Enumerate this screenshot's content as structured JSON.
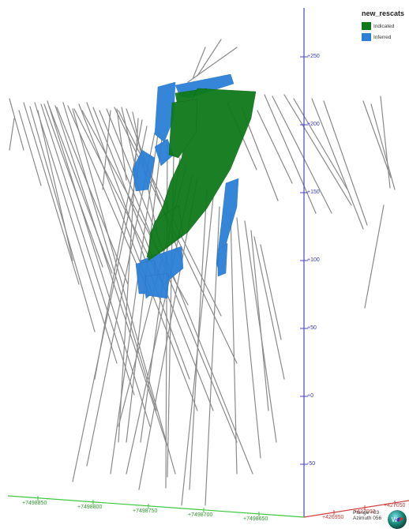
{
  "legend": {
    "title": "new_rescats",
    "items": [
      {
        "label": "Indicated",
        "color": "#0f7a1a"
      },
      {
        "label": "Inferred",
        "color": "#2b7fd6"
      }
    ]
  },
  "axes": {
    "z_ticks": [
      "+250",
      "+200",
      "+150",
      "+100",
      "+50",
      "+0",
      "-50"
    ],
    "y_ticks": [
      "+7498850",
      "+7498800",
      "+7498750",
      "+7498700",
      "+7498650"
    ],
    "x_ticks": [
      "+426950",
      "+427000",
      "+427050"
    ],
    "colors": {
      "z": "#4646c8",
      "y": "#3cc83c",
      "x": "#d23c3c"
    }
  },
  "view": {
    "plunge": "Plunge +03",
    "azimuth": "Azimuth 056",
    "compass_icon": "compass-icon",
    "compass_letters": "W"
  }
}
